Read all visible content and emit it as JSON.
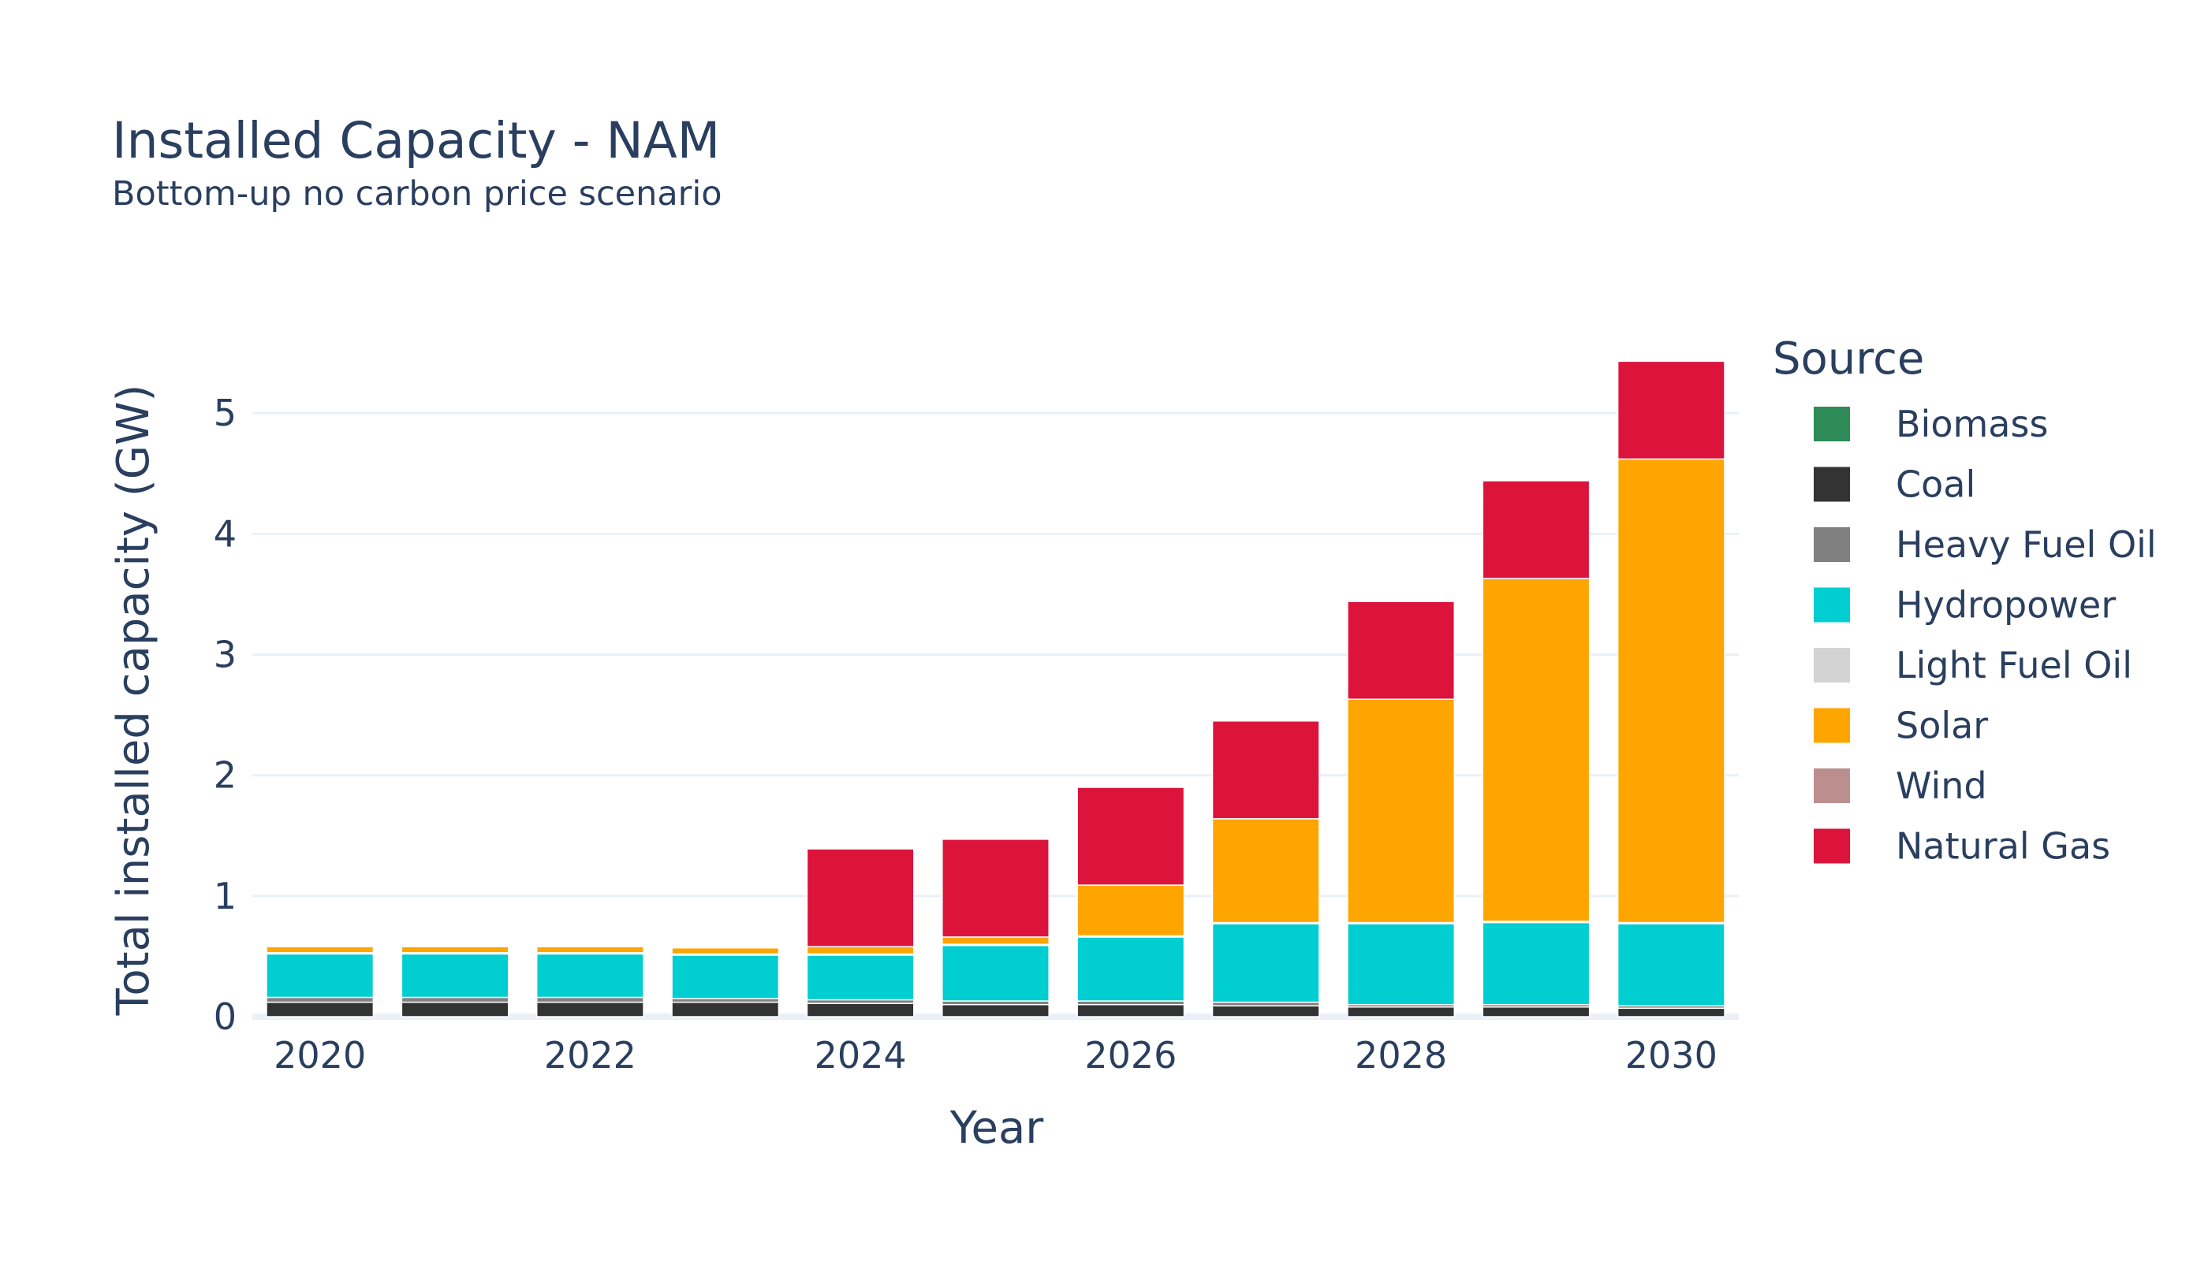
{
  "chart_data": {
    "type": "bar",
    "barmode": "stack",
    "title": "Installed Capacity - NAM",
    "subtitle": "Bottom-up no carbon price scenario",
    "xlabel": "Year",
    "ylabel": "Total installed capacity (GW)",
    "ylim": [
      0,
      5.55
    ],
    "yticks": [
      0,
      1,
      2,
      3,
      4,
      5
    ],
    "xticks": [
      2020,
      2022,
      2024,
      2026,
      2028,
      2030
    ],
    "grid": true,
    "legend_title": "Source",
    "legend_position": "right",
    "x": [
      2020,
      2021,
      2022,
      2023,
      2024,
      2025,
      2026,
      2027,
      2028,
      2029,
      2030
    ],
    "series": [
      {
        "name": "Biomass",
        "color": "#2e8b57",
        "values": [
          0,
          0,
          0,
          0,
          0,
          0,
          0,
          0,
          0,
          0,
          0
        ]
      },
      {
        "name": "Coal",
        "color": "#333333",
        "values": [
          0.12,
          0.12,
          0.12,
          0.12,
          0.11,
          0.1,
          0.1,
          0.09,
          0.08,
          0.08,
          0.07
        ]
      },
      {
        "name": "Heavy Fuel Oil",
        "color": "#808080",
        "values": [
          0.04,
          0.04,
          0.04,
          0.03,
          0.03,
          0.03,
          0.03,
          0.03,
          0.02,
          0.02,
          0.02
        ]
      },
      {
        "name": "Hydropower",
        "color": "#00ced1",
        "values": [
          0.36,
          0.36,
          0.36,
          0.36,
          0.37,
          0.46,
          0.53,
          0.65,
          0.67,
          0.68,
          0.68
        ]
      },
      {
        "name": "Light Fuel Oil",
        "color": "#d3d3d3",
        "values": [
          0.01,
          0.01,
          0.01,
          0.01,
          0.01,
          0.01,
          0.01,
          0.01,
          0.01,
          0.01,
          0.01
        ]
      },
      {
        "name": "Solar",
        "color": "#ffa500",
        "values": [
          0.05,
          0.05,
          0.05,
          0.05,
          0.06,
          0.06,
          0.42,
          0.86,
          1.85,
          2.84,
          3.84
        ]
      },
      {
        "name": "Wind",
        "color": "#bc8f8f",
        "values": [
          0,
          0,
          0,
          0,
          0,
          0,
          0,
          0,
          0,
          0,
          0
        ]
      },
      {
        "name": "Natural Gas",
        "color": "#dc143c",
        "values": [
          0,
          0,
          0,
          0,
          0.81,
          0.81,
          0.81,
          0.81,
          0.81,
          0.81,
          0.81
        ]
      }
    ]
  }
}
